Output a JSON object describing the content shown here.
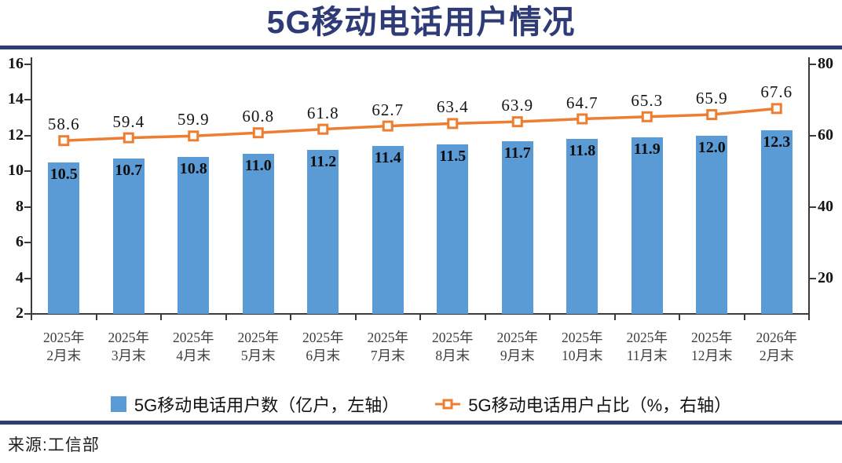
{
  "title": "5G移动电话用户情况",
  "source_note": "来源:工信部",
  "colors": {
    "navy": "#2e3b76",
    "bar_blue": "#5b9bd5",
    "line_orange": "#ed7d31",
    "axis": "#3a3a3a"
  },
  "chart_data": {
    "type": "combo-bar-line",
    "title": "5G移动电话用户情况",
    "categories": [
      [
        "2025年",
        "2月末"
      ],
      [
        "2025年",
        "3月末"
      ],
      [
        "2025年",
        "4月末"
      ],
      [
        "2025年",
        "5月末"
      ],
      [
        "2025年",
        "6月末"
      ],
      [
        "2025年",
        "7月末"
      ],
      [
        "2025年",
        "8月末"
      ],
      [
        "2025年",
        "9月末"
      ],
      [
        "2025年",
        "10月末"
      ],
      [
        "2025年",
        "11月末"
      ],
      [
        "2025年",
        "12月末"
      ],
      [
        "2026年",
        "2月末"
      ]
    ],
    "series": [
      {
        "name": "5G移动电话用户数（亿户，左轴）",
        "type": "bar",
        "axis": "left",
        "values": [
          10.5,
          10.7,
          10.8,
          11.0,
          11.2,
          11.4,
          11.5,
          11.7,
          11.8,
          11.9,
          12.0,
          12.3
        ]
      },
      {
        "name": "5G移动电话用户占比（%，右轴）",
        "type": "line",
        "axis": "right",
        "values": [
          58.6,
          59.4,
          59.9,
          60.8,
          61.8,
          62.7,
          63.4,
          63.9,
          64.7,
          65.3,
          65.9,
          67.6
        ]
      }
    ],
    "left_axis": {
      "min": 2,
      "max": 16,
      "ticks": [
        2,
        4,
        6,
        8,
        10,
        12,
        14,
        16
      ]
    },
    "right_axis": {
      "min": 10,
      "max": 80,
      "ticks": [
        20,
        40,
        60,
        80
      ]
    },
    "legend_position": "bottom",
    "grid": false
  }
}
